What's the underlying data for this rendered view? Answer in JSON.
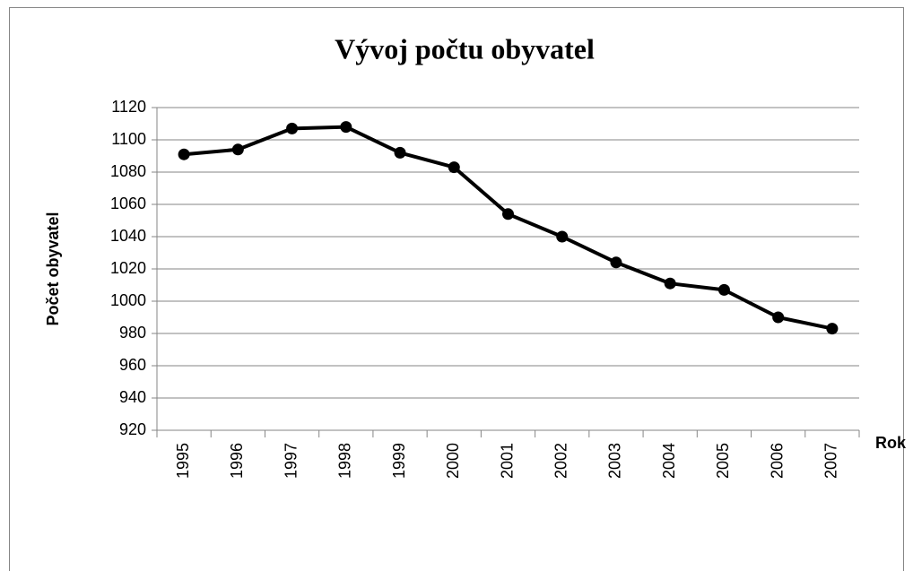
{
  "chart_data": {
    "type": "line",
    "title": "Vývoj počtu obyvatel",
    "x_label": "Rok",
    "y_label": "Počet obyvatel",
    "categories": [
      "1995",
      "1996",
      "1997",
      "1998",
      "1999",
      "2000",
      "2001",
      "2002",
      "2003",
      "2004",
      "2005",
      "2006",
      "2007"
    ],
    "values": [
      1091,
      1094,
      1107,
      1108,
      1092,
      1083,
      1054,
      1040,
      1024,
      1011,
      1007,
      990,
      983
    ],
    "color": "#000000",
    "ylim": [
      920,
      1120
    ],
    "yticks": [
      920,
      940,
      960,
      980,
      1000,
      1020,
      1040,
      1060,
      1080,
      1100,
      1120
    ],
    "grid": true
  }
}
